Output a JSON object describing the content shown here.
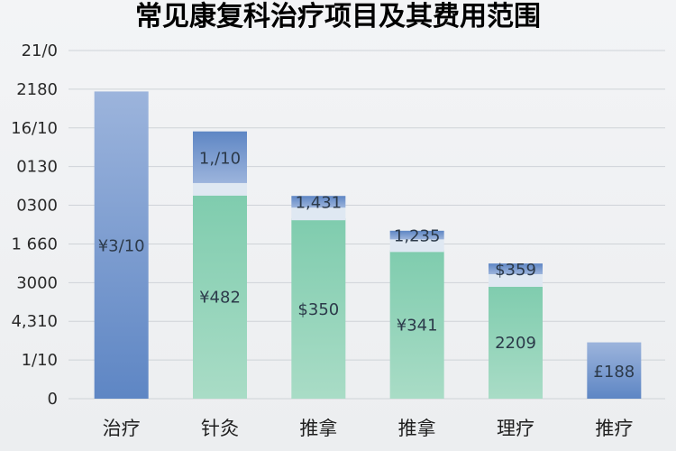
{
  "chart_data": {
    "type": "bar",
    "title": "常见康复科治疗项目及其费用范围",
    "xlabel": "",
    "ylabel": "",
    "y_tick_labels": [
      "0",
      "1/10",
      "4,310",
      "3000",
      "1 660",
      "0300",
      "0130",
      "16/10",
      "2180",
      "21/0"
    ],
    "categories": [
      "治疗",
      "针灸",
      "推拿",
      "推拿",
      "理疗",
      "推疗"
    ],
    "series": [
      {
        "values": [
          3000,
          2610,
          1980,
          1640,
          1320,
          550
        ],
        "top_values": [
          null,
          2000,
          1760,
          1450,
          1110,
          null
        ],
        "bottom_labels": [
          "¥3/10",
          "¥482",
          "$350",
          "¥341",
          "2209",
          "£188"
        ],
        "top_labels": [
          null,
          "1,/10",
          "1,431",
          "1,235",
          "$359",
          null
        ]
      }
    ],
    "ylim": [
      0,
      3400
    ],
    "grid": true,
    "legend": "none",
    "colors": {
      "blue_dark": "#5e86c4",
      "blue_light": "#9cb4dc",
      "green": "#7fccae",
      "green_light": "#a9dcc6",
      "band": "#dfe8f2"
    }
  }
}
